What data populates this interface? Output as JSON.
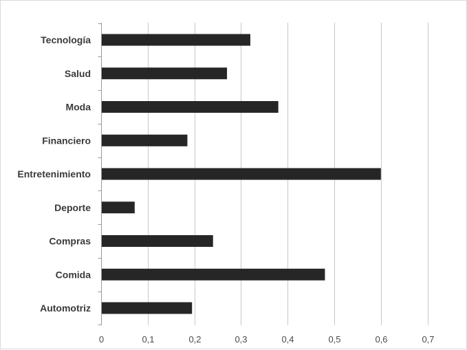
{
  "chart_data": {
    "type": "bar",
    "orientation": "horizontal",
    "title": "",
    "xlabel": "",
    "ylabel": "",
    "categories": [
      "Tecnología",
      "Salud",
      "Moda",
      "Financiero",
      "Entretenimiento",
      "Deporte",
      "Compras",
      "Comida",
      "Automotriz"
    ],
    "values": [
      0.32,
      0.27,
      0.38,
      0.185,
      0.6,
      0.072,
      0.24,
      0.48,
      0.195
    ],
    "xlim": [
      0,
      0.7
    ],
    "x_ticks": [
      0,
      0.1,
      0.2,
      0.3,
      0.4,
      0.5,
      0.6,
      0.7
    ],
    "x_tick_labels": [
      "0",
      "0,1",
      "0,2",
      "0,3",
      "0,4",
      "0,5",
      "0,6",
      "0,7"
    ],
    "grid": true,
    "legend": "none",
    "colors": {
      "bar": "#262626",
      "grid": "#c8c8c8",
      "axis": "#9a9a9a",
      "frame": "#d9d9d9"
    }
  }
}
